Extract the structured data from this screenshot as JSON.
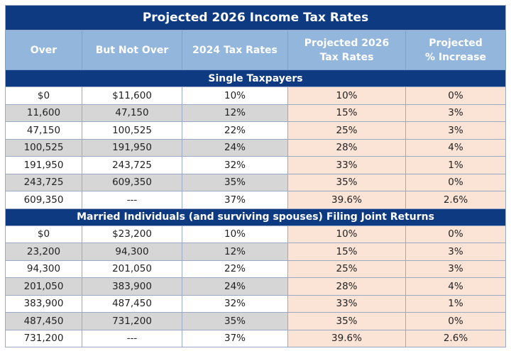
{
  "title": "Projected 2026 Income Tax Rates",
  "headers": [
    "Over",
    "But Not Over",
    "2024 Tax Rates",
    "Projected 2026\nTax Rates",
    "Projected\n% Increase"
  ],
  "sections": [
    {
      "label": "Single Taxpayers",
      "rows": [
        [
          "$0",
          "$11,600",
          "10%",
          "10%",
          "0%"
        ],
        [
          "11,600",
          "47,150",
          "12%",
          "15%",
          "3%"
        ],
        [
          "47,150",
          "100,525",
          "22%",
          "25%",
          "3%"
        ],
        [
          "100,525",
          "191,950",
          "24%",
          "28%",
          "4%"
        ],
        [
          "191,950",
          "243,725",
          "32%",
          "33%",
          "1%"
        ],
        [
          "243,725",
          "609,350",
          "35%",
          "35%",
          "0%"
        ],
        [
          "609,350",
          "---",
          "37%",
          "39.6%",
          "2.6%"
        ]
      ]
    },
    {
      "label": "Married Individuals (and surviving spouses) Filing Joint Returns",
      "rows": [
        [
          "$0",
          "$23,200",
          "10%",
          "10%",
          "0%"
        ],
        [
          "23,200",
          "94,300",
          "12%",
          "15%",
          "3%"
        ],
        [
          "94,300",
          "201,050",
          "22%",
          "25%",
          "3%"
        ],
        [
          "201,050",
          "383,900",
          "24%",
          "28%",
          "4%"
        ],
        [
          "383,900",
          "487,450",
          "32%",
          "33%",
          "1%"
        ],
        [
          "487,450",
          "731,200",
          "35%",
          "35%",
          "0%"
        ],
        [
          "731,200",
          "---",
          "37%",
          "39.6%",
          "2.6%"
        ]
      ]
    }
  ],
  "colors": {
    "navy": "#0d3a80",
    "header": "#93b6dd",
    "projected": "#fbe3d6",
    "alt_row": "#d6d6d6"
  }
}
